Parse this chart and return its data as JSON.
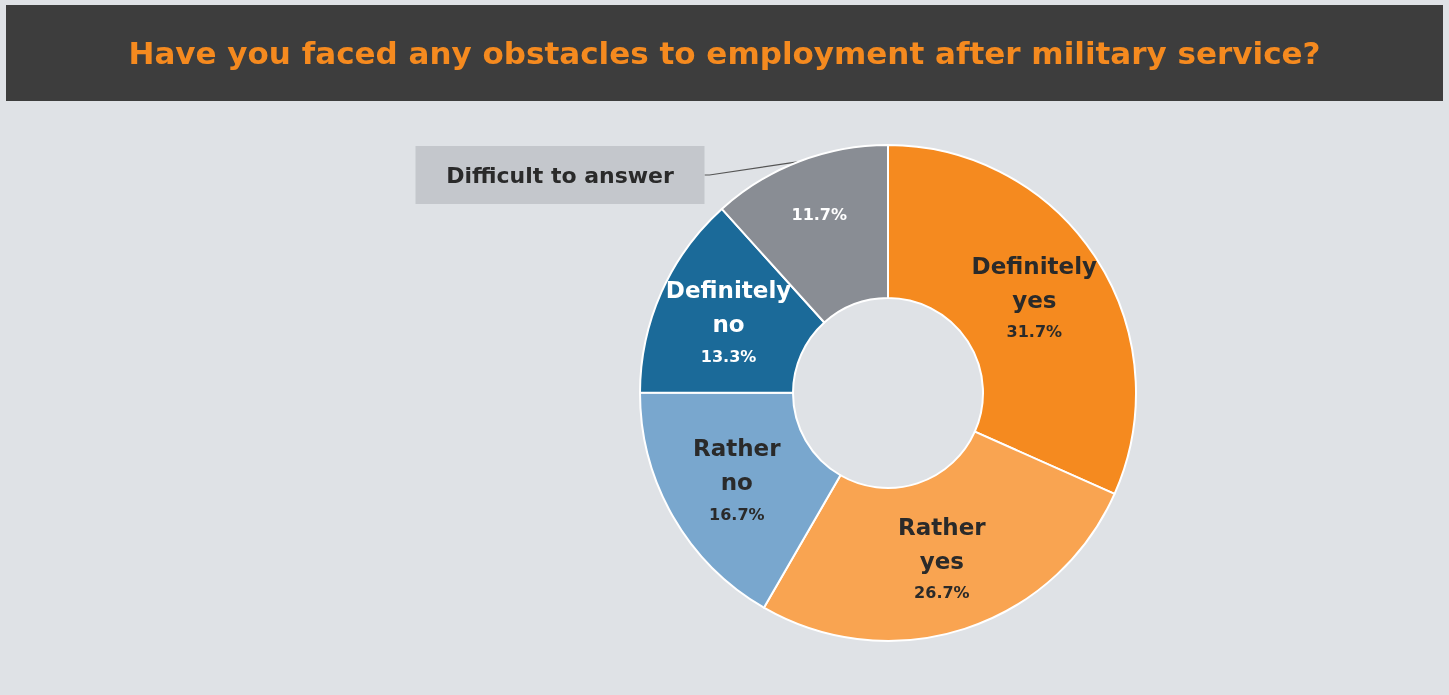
{
  "chart_data": {
    "type": "donut",
    "title": "Have you faced any obstacles to employment after military service?",
    "categories": [
      "Definitely yes",
      "Rather yes",
      "Rather no",
      "Definitely no",
      "Difficult to answer"
    ],
    "values": [
      31.7,
      26.7,
      16.7,
      13.3,
      11.7
    ],
    "colors": [
      "#f58a1f",
      "#f9a451",
      "#79a7ce",
      "#1b6a99",
      "#898d94"
    ],
    "legend": false,
    "value_labels": [
      "31.7%",
      "26.7%",
      "16.7%",
      "13.3%",
      "11.7%"
    ]
  }
}
